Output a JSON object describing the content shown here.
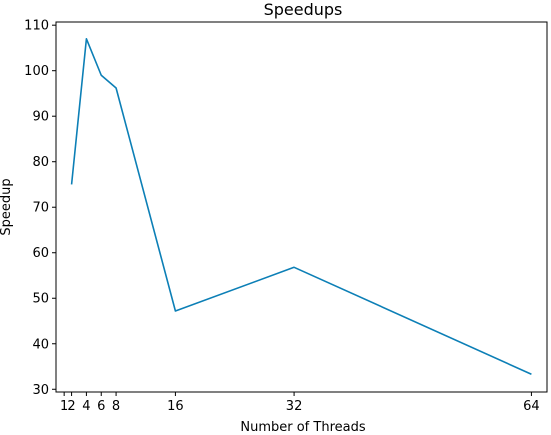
{
  "chart_data": {
    "type": "line",
    "title": "Speedups",
    "xlabel": "Number of Threads",
    "ylabel": "Speedup",
    "x": [
      2,
      4,
      6,
      8,
      16,
      32,
      64
    ],
    "series": [
      {
        "values": [
          75,
          107,
          99,
          96.2,
          47.2,
          56.8,
          33.3
        ],
        "color": "#0c7fb6"
      }
    ],
    "xticks": [
      1,
      2,
      4,
      6,
      8,
      16,
      32,
      64
    ],
    "xtick_labels": [
      "1",
      "2",
      "4",
      "6",
      "8",
      "16",
      "32",
      "64"
    ],
    "yticks": [
      30,
      40,
      50,
      60,
      70,
      80,
      90,
      100,
      110
    ],
    "xlim": [
      -0.1,
      66.1
    ],
    "ylim": [
      29.4,
      110.7
    ],
    "grid": false,
    "legend": "none"
  }
}
